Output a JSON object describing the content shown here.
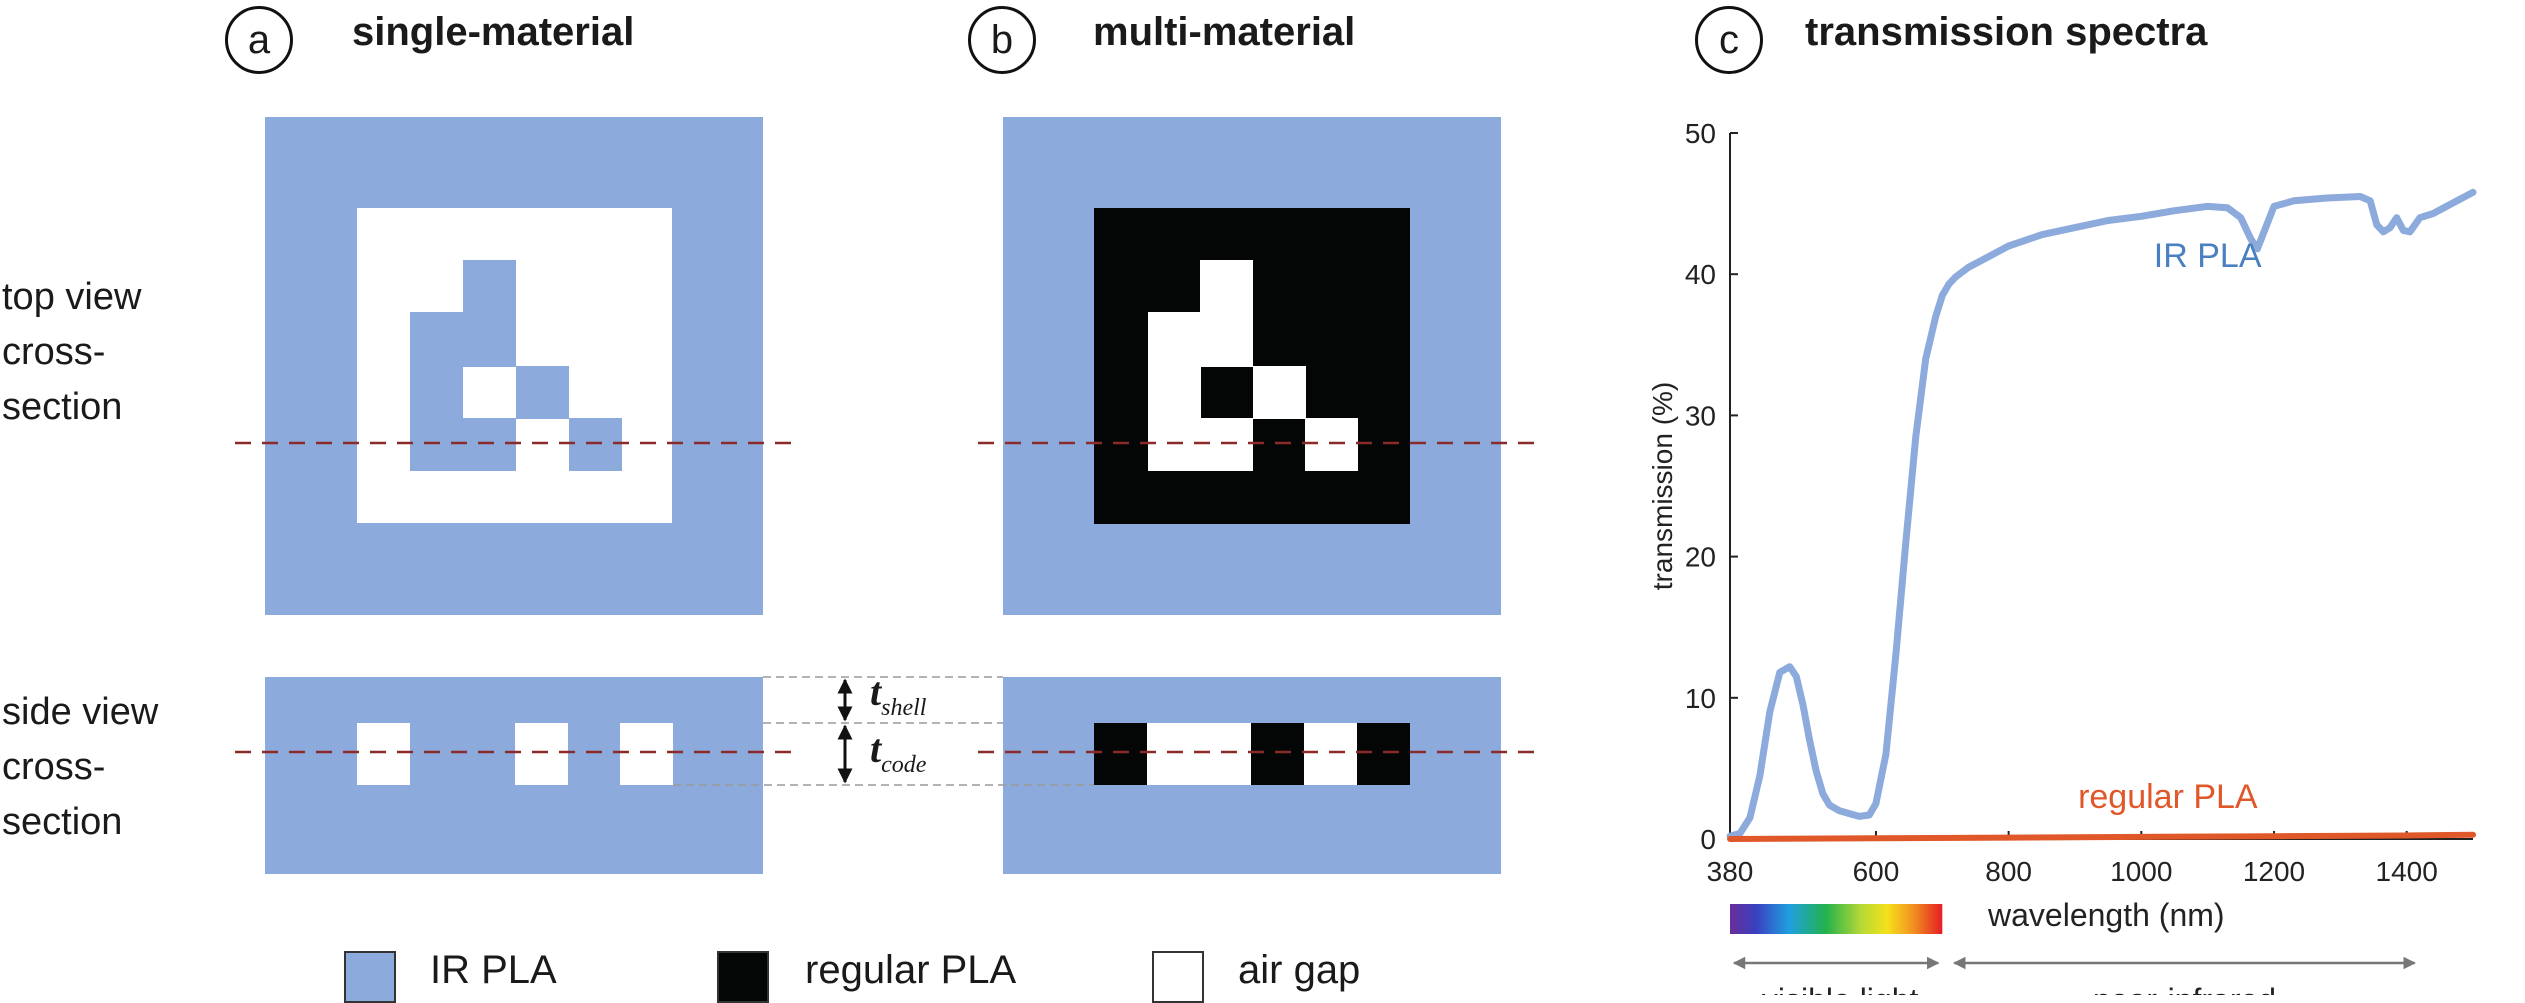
{
  "panels": {
    "a": {
      "letter": "a",
      "title": "single-material"
    },
    "b": {
      "letter": "b",
      "title": "multi-material"
    },
    "c": {
      "letter": "c",
      "title": "transmission spectra"
    }
  },
  "row_labels": {
    "top": "top view cross-section",
    "top_lines": [
      "top view",
      "cross-",
      "section"
    ],
    "side": "side view cross-section",
    "side_lines": [
      "side view",
      "cross-",
      "section"
    ]
  },
  "thickness_labels": {
    "shell": {
      "main": "t",
      "sub": "shell"
    },
    "code": {
      "main": "t",
      "sub": "code"
    }
  },
  "legend": [
    {
      "label": "IR PLA",
      "color": "#8caadb"
    },
    {
      "label": "regular PLA",
      "color": "#040606"
    },
    {
      "label": "air gap",
      "color": "#ffffff"
    }
  ],
  "colors": {
    "ir_pla": "#8caadb",
    "regular_pla": "#040606",
    "air_gap": "#ffffff",
    "cut_line": "#8b2a2a",
    "ir_curve": "#8caadb",
    "regular_curve": "#e0582a",
    "ir_label": "#4a7fc1",
    "regular_label": "#e0582a"
  },
  "chart_data": {
    "type": "line",
    "xlabel": "wavelength (nm)",
    "ylabel": "transmission (%)",
    "xlim": [
      380,
      1500
    ],
    "ylim": [
      0,
      50
    ],
    "xticks": [
      380,
      600,
      800,
      1000,
      1200,
      1400
    ],
    "yticks": [
      0,
      10,
      20,
      30,
      40,
      50
    ],
    "series": [
      {
        "name": "IR PLA",
        "x": [
          380,
          395,
          410,
          425,
          440,
          455,
          470,
          480,
          490,
          500,
          510,
          520,
          530,
          545,
          560,
          575,
          590,
          600,
          615,
          630,
          645,
          660,
          675,
          690,
          700,
          710,
          720,
          740,
          760,
          800,
          850,
          900,
          950,
          1000,
          1050,
          1100,
          1130,
          1150,
          1165,
          1175,
          1185,
          1200,
          1230,
          1280,
          1330,
          1345,
          1355,
          1365,
          1375,
          1385,
          1395,
          1405,
          1420,
          1440,
          1460,
          1480,
          1500
        ],
        "y": [
          0.2,
          0.4,
          1.5,
          4.5,
          9,
          11.8,
          12.2,
          11.5,
          9.5,
          7,
          4.8,
          3.2,
          2.4,
          2,
          1.8,
          1.6,
          1.7,
          2.5,
          6,
          13,
          21,
          28.5,
          34,
          37,
          38.5,
          39.3,
          39.8,
          40.5,
          41,
          42,
          42.8,
          43.3,
          43.8,
          44.1,
          44.5,
          44.8,
          44.7,
          44,
          42.5,
          41.8,
          43,
          44.8,
          45.2,
          45.4,
          45.5,
          45.2,
          43.5,
          43,
          43.3,
          44,
          43.1,
          43,
          44,
          44.3,
          44.8,
          45.3,
          45.8
        ]
      },
      {
        "name": "regular PLA",
        "x": [
          380,
          600,
          800,
          1000,
          1200,
          1400,
          1500
        ],
        "y": [
          0,
          0.05,
          0.1,
          0.15,
          0.2,
          0.25,
          0.3
        ]
      }
    ],
    "annotations": [
      {
        "text": "IR PLA",
        "x": 1100,
        "y": 40.5,
        "series": "IR PLA"
      },
      {
        "text": "regular PLA",
        "x": 1040,
        "y": 2.2,
        "series": "regular PLA"
      }
    ],
    "bands": [
      {
        "label": "visible light",
        "from": 380,
        "to": 700
      },
      {
        "label": "near-infrared",
        "from": 700,
        "to": 1400
      }
    ],
    "grid": false,
    "legend": "none"
  }
}
